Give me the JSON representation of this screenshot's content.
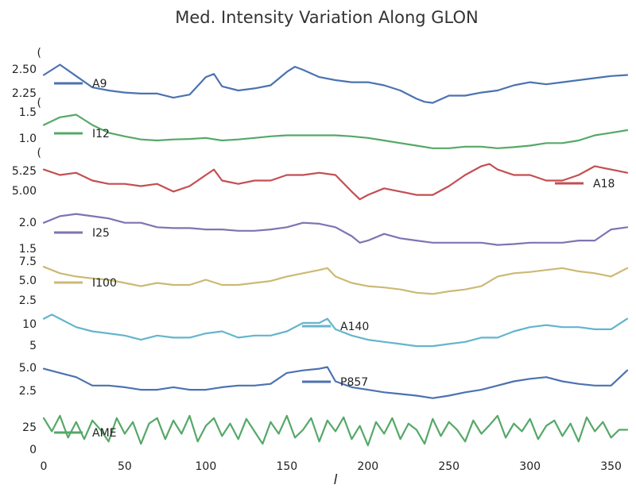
{
  "chart_data": {
    "type": "line",
    "title": "Med. Intensity Variation Along GLON",
    "xlabel": "l",
    "xlim": [
      0,
      360
    ],
    "xticks": [
      0,
      50,
      100,
      150,
      200,
      250,
      300,
      350
    ],
    "grid": false,
    "panels": [
      {
        "name": "A9",
        "color": "#4c72b0",
        "legend_position": "left",
        "ylim": [
          2.2,
          2.6
        ],
        "yticks": [
          "2.25",
          "2.50"
        ],
        "clipped_top_label": "(",
        "x": [
          0,
          10,
          20,
          30,
          40,
          50,
          60,
          70,
          80,
          90,
          100,
          105,
          110,
          120,
          130,
          140,
          150,
          155,
          160,
          170,
          180,
          190,
          200,
          210,
          220,
          230,
          235,
          240,
          250,
          260,
          270,
          280,
          290,
          300,
          310,
          320,
          330,
          340,
          350,
          360
        ],
        "y": [
          2.45,
          2.55,
          2.44,
          2.33,
          2.3,
          2.28,
          2.27,
          2.27,
          2.23,
          2.26,
          2.43,
          2.46,
          2.34,
          2.3,
          2.32,
          2.35,
          2.48,
          2.53,
          2.5,
          2.43,
          2.4,
          2.38,
          2.38,
          2.35,
          2.3,
          2.22,
          2.19,
          2.18,
          2.25,
          2.25,
          2.28,
          2.3,
          2.35,
          2.38,
          2.36,
          2.38,
          2.4,
          2.42,
          2.44,
          2.45
        ]
      },
      {
        "name": "I12",
        "color": "#55a868",
        "legend_position": "left",
        "ylim": [
          0.8,
          1.6
        ],
        "yticks": [
          "1.0",
          "1.5"
        ],
        "clipped_top_label": "(",
        "x": [
          0,
          10,
          20,
          30,
          40,
          50,
          60,
          70,
          80,
          90,
          100,
          110,
          120,
          130,
          140,
          150,
          160,
          170,
          180,
          190,
          200,
          210,
          220,
          230,
          240,
          250,
          260,
          270,
          280,
          290,
          300,
          310,
          320,
          330,
          340,
          350,
          360
        ],
        "y": [
          1.3,
          1.45,
          1.5,
          1.3,
          1.15,
          1.08,
          1.02,
          1.0,
          1.02,
          1.03,
          1.05,
          1.0,
          1.02,
          1.05,
          1.08,
          1.1,
          1.1,
          1.1,
          1.1,
          1.08,
          1.05,
          1.0,
          0.95,
          0.9,
          0.85,
          0.85,
          0.88,
          0.88,
          0.85,
          0.87,
          0.9,
          0.95,
          0.95,
          1.0,
          1.1,
          1.15,
          1.2
        ]
      },
      {
        "name": "A18",
        "color": "#c44e52",
        "legend_position": "right",
        "ylim": [
          4.96,
          5.34
        ],
        "yticks": [
          "5.00",
          "5.25"
        ],
        "clipped_top_label": "(",
        "x": [
          0,
          10,
          20,
          30,
          40,
          50,
          60,
          70,
          80,
          90,
          100,
          105,
          110,
          120,
          130,
          140,
          150,
          160,
          170,
          180,
          190,
          195,
          200,
          210,
          220,
          230,
          240,
          250,
          260,
          270,
          275,
          280,
          290,
          300,
          310,
          320,
          330,
          340,
          350,
          360
        ],
        "y": [
          5.25,
          5.2,
          5.22,
          5.15,
          5.12,
          5.12,
          5.1,
          5.12,
          5.05,
          5.1,
          5.2,
          5.25,
          5.15,
          5.12,
          5.15,
          5.15,
          5.2,
          5.2,
          5.22,
          5.2,
          5.05,
          4.98,
          5.02,
          5.08,
          5.05,
          5.02,
          5.02,
          5.1,
          5.2,
          5.28,
          5.3,
          5.25,
          5.2,
          5.2,
          5.15,
          5.15,
          5.2,
          5.28,
          5.25,
          5.22
        ]
      },
      {
        "name": "I25",
        "color": "#8172b2",
        "legend_position": "left",
        "ylim": [
          1.35,
          2.3
        ],
        "yticks": [
          "1.5",
          "2.0"
        ],
        "clipped_top_label": "",
        "x": [
          0,
          10,
          20,
          30,
          40,
          50,
          60,
          70,
          80,
          90,
          100,
          110,
          120,
          130,
          140,
          150,
          160,
          170,
          180,
          190,
          195,
          200,
          210,
          220,
          230,
          240,
          250,
          260,
          270,
          280,
          290,
          300,
          310,
          320,
          330,
          340,
          350,
          360
        ],
        "y": [
          2.0,
          2.15,
          2.2,
          2.15,
          2.1,
          2.0,
          2.0,
          1.9,
          1.88,
          1.88,
          1.85,
          1.85,
          1.82,
          1.82,
          1.85,
          1.9,
          2.0,
          1.98,
          1.9,
          1.7,
          1.55,
          1.6,
          1.75,
          1.65,
          1.6,
          1.55,
          1.55,
          1.55,
          1.55,
          1.5,
          1.52,
          1.55,
          1.55,
          1.55,
          1.6,
          1.6,
          1.85,
          1.9
        ]
      },
      {
        "name": "I100",
        "color": "#ccb974",
        "legend_position": "left",
        "ylim": [
          1.5,
          8.0
        ],
        "yticks": [
          "2.5",
          "5.0",
          "7.5"
        ],
        "clipped_top_label": "",
        "x": [
          0,
          10,
          20,
          30,
          40,
          50,
          60,
          70,
          80,
          90,
          100,
          110,
          120,
          130,
          140,
          150,
          160,
          170,
          175,
          180,
          190,
          200,
          210,
          220,
          230,
          240,
          250,
          260,
          270,
          280,
          290,
          300,
          310,
          320,
          330,
          340,
          350,
          360
        ],
        "y": [
          7.0,
          6.0,
          5.5,
          5.2,
          5.0,
          4.5,
          4.0,
          4.5,
          4.2,
          4.2,
          5.0,
          4.2,
          4.2,
          4.5,
          4.8,
          5.5,
          6.0,
          6.5,
          6.8,
          5.5,
          4.5,
          4.0,
          3.8,
          3.5,
          3.0,
          2.8,
          3.2,
          3.5,
          4.0,
          5.5,
          6.0,
          6.2,
          6.5,
          6.8,
          6.3,
          6.0,
          5.5,
          6.8
        ]
      },
      {
        "name": "A140",
        "color": "#64b5cd",
        "legend_position": "middle",
        "ylim": [
          3.0,
          13.0
        ],
        "yticks": [
          "5",
          "10"
        ],
        "clipped_top_label": "",
        "x": [
          0,
          5,
          10,
          20,
          30,
          40,
          50,
          60,
          70,
          80,
          90,
          100,
          110,
          120,
          130,
          140,
          150,
          160,
          170,
          175,
          180,
          190,
          200,
          210,
          220,
          230,
          240,
          250,
          260,
          270,
          280,
          290,
          300,
          310,
          320,
          330,
          340,
          350,
          360
        ],
        "y": [
          11.0,
          12.0,
          11.0,
          9.0,
          8.0,
          7.5,
          7.0,
          6.0,
          7.0,
          6.5,
          6.5,
          7.5,
          8.0,
          6.5,
          7.0,
          7.0,
          8.0,
          10.0,
          10.0,
          11.0,
          8.5,
          7.0,
          6.0,
          5.5,
          5.0,
          4.5,
          4.5,
          5.0,
          5.5,
          6.5,
          6.5,
          8.0,
          9.0,
          9.5,
          9.0,
          9.0,
          8.5,
          8.5,
          11.0
        ]
      },
      {
        "name": "P857",
        "color": "#4c72b0",
        "legend_position": "middle",
        "ylim": [
          1.0,
          6.0
        ],
        "yticks": [
          "2.5",
          "5.0"
        ],
        "clipped_top_label": "",
        "x": [
          0,
          10,
          20,
          30,
          40,
          50,
          60,
          70,
          80,
          90,
          100,
          110,
          120,
          130,
          140,
          150,
          160,
          170,
          175,
          180,
          190,
          200,
          210,
          220,
          230,
          240,
          250,
          260,
          270,
          280,
          290,
          300,
          310,
          320,
          330,
          340,
          350,
          360
        ],
        "y": [
          5.0,
          4.5,
          4.0,
          3.0,
          3.0,
          2.8,
          2.5,
          2.5,
          2.8,
          2.5,
          2.5,
          2.8,
          3.0,
          3.0,
          3.2,
          4.5,
          4.8,
          5.0,
          5.2,
          3.5,
          2.8,
          2.5,
          2.2,
          2.0,
          1.8,
          1.5,
          1.8,
          2.2,
          2.5,
          3.0,
          3.5,
          3.8,
          4.0,
          3.5,
          3.2,
          3.0,
          3.0,
          4.8
        ]
      },
      {
        "name": "AME",
        "color": "#55a868",
        "legend_position": "left",
        "ylim": [
          0,
          55
        ],
        "yticks": [
          "0",
          "25"
        ],
        "clipped_top_label": "",
        "x": [
          0,
          5,
          10,
          15,
          20,
          25,
          30,
          35,
          40,
          45,
          50,
          55,
          60,
          65,
          70,
          75,
          80,
          85,
          90,
          95,
          100,
          105,
          110,
          115,
          120,
          125,
          130,
          135,
          140,
          145,
          150,
          155,
          160,
          165,
          170,
          175,
          180,
          185,
          190,
          195,
          200,
          205,
          210,
          215,
          220,
          225,
          230,
          235,
          240,
          245,
          250,
          255,
          260,
          265,
          270,
          275,
          280,
          285,
          290,
          295,
          300,
          305,
          310,
          315,
          320,
          325,
          330,
          335,
          340,
          345,
          350,
          355,
          360
        ],
        "y": [
          45,
          28,
          48,
          20,
          40,
          18,
          42,
          30,
          15,
          45,
          25,
          40,
          12,
          38,
          45,
          18,
          42,
          25,
          48,
          15,
          35,
          45,
          22,
          38,
          18,
          44,
          28,
          12,
          40,
          25,
          48,
          20,
          30,
          45,
          15,
          42,
          28,
          46,
          18,
          35,
          10,
          40,
          25,
          45,
          18,
          38,
          30,
          12,
          44,
          22,
          40,
          30,
          15,
          42,
          25,
          36,
          48,
          20,
          38,
          28,
          44,
          18,
          35,
          42,
          22,
          38,
          15,
          46,
          28,
          40,
          20,
          30,
          30
        ]
      }
    ]
  }
}
